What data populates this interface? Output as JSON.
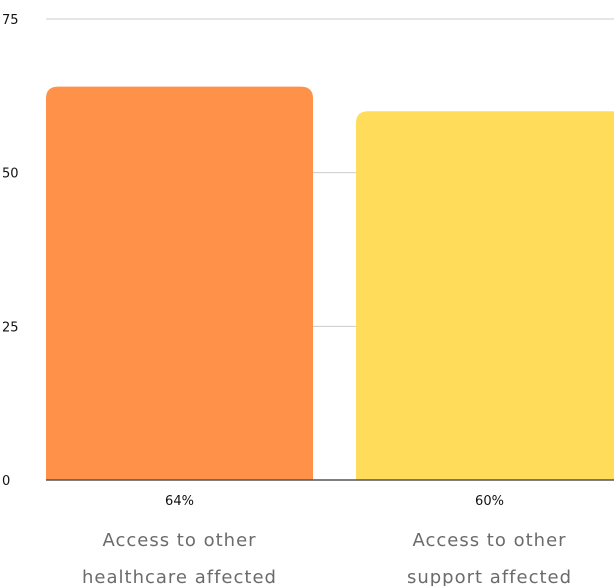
{
  "chart_data": {
    "type": "bar",
    "title": "",
    "xlabel": "",
    "ylabel": "",
    "ylim": [
      0,
      75
    ],
    "yticks": [
      0,
      25,
      50,
      75
    ],
    "grid": true,
    "legend": "none",
    "categories": [
      [
        "Access to other",
        "healthcare affected"
      ],
      [
        "Access to other",
        "support affected"
      ]
    ],
    "values": [
      64,
      60
    ],
    "data_labels": [
      "64%",
      "60%"
    ],
    "colors": [
      "#FF9149",
      "#FFDC5A"
    ],
    "grid_color": "#cccccc",
    "baseline_color": "#555555"
  }
}
